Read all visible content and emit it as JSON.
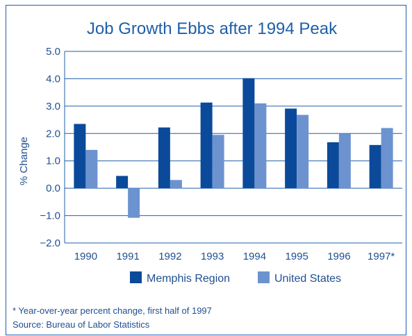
{
  "chart_data": {
    "type": "bar",
    "title": "Job Growth Ebbs after 1994 Peak",
    "xlabel": "",
    "ylabel": "% Change",
    "categories": [
      "1990",
      "1991",
      "1992",
      "1993",
      "1994",
      "1995",
      "1996",
      "1997*"
    ],
    "series": [
      {
        "name": "Memphis Region",
        "color": "#0b4a9b",
        "values": [
          2.35,
          0.45,
          2.22,
          3.13,
          4.02,
          2.91,
          1.68,
          1.58
        ]
      },
      {
        "name": "United States",
        "color": "#6c93cf",
        "values": [
          1.4,
          -1.08,
          0.3,
          1.95,
          3.1,
          2.68,
          1.99,
          2.2
        ]
      }
    ],
    "ylim": [
      -2.0,
      5.0
    ],
    "yticks": [
      "−2.0",
      "−1.0",
      "0.0",
      "1.0",
      "2.0",
      "3.0",
      "4.0",
      "5.0"
    ],
    "grid": true,
    "legend": "bottom"
  },
  "notes": {
    "footnote": "* Year-over-year percent change, first half of 1997",
    "source": "Source: Bureau of Labor Statistics"
  }
}
